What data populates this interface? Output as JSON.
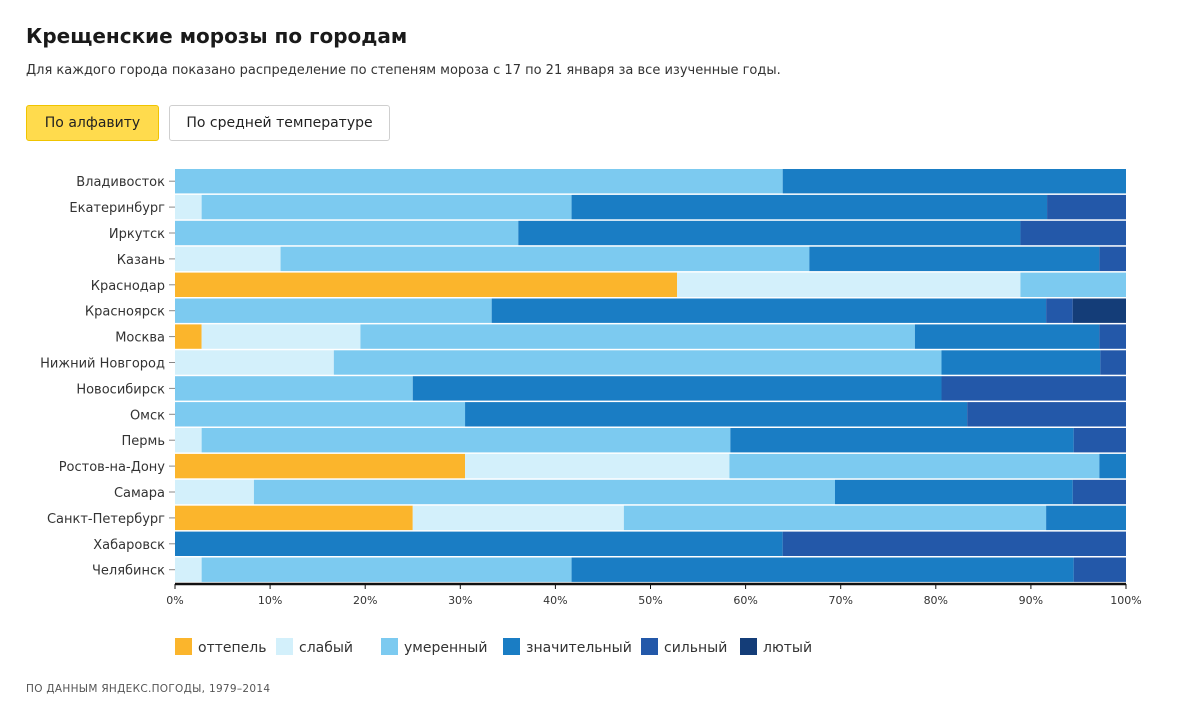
{
  "header": {
    "title": "Крещенские морозы по городам",
    "subtitle": "Для каждого города показано распределение по степеням мороза с 17 по 21 января за все изученные годы."
  },
  "controls": {
    "sort_alpha_label": "По алфавиту",
    "sort_temp_label": "По средней температуре",
    "active": "alpha"
  },
  "footer": {
    "source": "ПО ДАННЫМ ЯНДЕКС.ПОГОДЫ, 1979–2014"
  },
  "chart_data": {
    "type": "bar",
    "orientation": "horizontal",
    "stacked": "percent",
    "categories": [
      "Владивосток",
      "Екатеринбург",
      "Иркутск",
      "Казань",
      "Краснодар",
      "Красноярск",
      "Москва",
      "Нижний Новгород",
      "Новосибирск",
      "Омск",
      "Пермь",
      "Ростов-на-Дону",
      "Самара",
      "Санкт-Петербург",
      "Хабаровск",
      "Челябинск"
    ],
    "series": [
      {
        "name": "оттепель",
        "color": "#fbb52c",
        "values": [
          0,
          0,
          0,
          0,
          52.8,
          0,
          2.8,
          0,
          0,
          0,
          0,
          30.5,
          0,
          25.0,
          0,
          0
        ]
      },
      {
        "name": "слабый",
        "color": "#d3f0fb",
        "values": [
          0,
          2.8,
          0,
          11.1,
          36.1,
          0,
          16.7,
          16.7,
          0,
          0,
          2.8,
          27.8,
          8.3,
          22.2,
          0,
          2.8
        ]
      },
      {
        "name": "умеренный",
        "color": "#7ccaf0",
        "values": [
          63.9,
          38.9,
          36.1,
          55.6,
          11.1,
          33.3,
          58.3,
          63.9,
          25.0,
          30.5,
          55.6,
          38.9,
          61.1,
          44.4,
          0,
          38.9
        ]
      },
      {
        "name": "значительный",
        "color": "#1a7dc4",
        "values": [
          36.1,
          50.0,
          52.8,
          30.5,
          0,
          58.3,
          19.4,
          16.7,
          55.6,
          52.8,
          36.1,
          2.8,
          25.0,
          8.4,
          63.9,
          52.8
        ]
      },
      {
        "name": "сильный",
        "color": "#2358a9",
        "values": [
          0,
          8.3,
          11.1,
          2.8,
          0,
          2.8,
          2.8,
          2.7,
          19.4,
          16.7,
          5.5,
          0,
          5.6,
          0,
          36.1,
          5.5
        ]
      },
      {
        "name": "лютый",
        "color": "#143d78",
        "values": [
          0,
          0,
          0,
          0,
          0,
          5.6,
          0,
          0,
          0,
          0,
          0,
          0,
          0,
          0,
          0,
          0
        ]
      }
    ],
    "xlim": [
      0,
      100
    ],
    "xticks": [
      "0%",
      "10%",
      "20%",
      "30%",
      "40%",
      "50%",
      "60%",
      "70%",
      "80%",
      "90%",
      "100%"
    ],
    "legend_position": "bottom"
  }
}
